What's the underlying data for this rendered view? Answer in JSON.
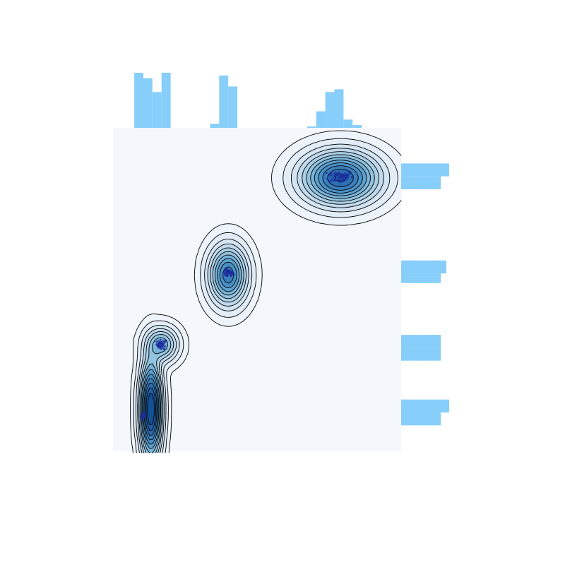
{
  "chart_data": {
    "type": "scatter",
    "variant": "jointplot-kde-contour-with-marginal-histograms",
    "title": "",
    "xlabel": "",
    "ylabel": "",
    "axes_visible": false,
    "grid": false,
    "colors": {
      "kde_background": "#f4f8fd",
      "kde_levels": [
        "#eef4fb",
        "#e2edf8",
        "#d3e4f3",
        "#c2d9ee",
        "#acd0e6",
        "#93c3df",
        "#79b3d8",
        "#5ea1cf",
        "#4a91c6",
        "#3a80be",
        "#2c6fb3",
        "#2060a5",
        "#155094"
      ],
      "contour_line": "#000000",
      "points": "#1d2c9e",
      "marginal_bars": "#87cefa"
    },
    "clusters": [
      {
        "center": [
          1.0,
          1.1
        ],
        "sd": [
          0.04,
          0.06
        ],
        "n": 20
      },
      {
        "center": [
          1.6,
          3.3
        ],
        "sd": [
          0.08,
          0.07
        ],
        "n": 40
      },
      {
        "center": [
          3.8,
          5.5
        ],
        "sd": [
          0.09,
          0.06
        ],
        "n": 45
      },
      {
        "center": [
          7.5,
          8.5
        ],
        "sd": [
          0.2,
          0.1
        ],
        "n": 60
      }
    ],
    "kde_centers": [
      {
        "center": [
          1.25,
          1.3
        ],
        "sd": [
          0.2,
          0.85
        ],
        "weight": 1.0
      },
      {
        "center": [
          1.6,
          3.3
        ],
        "sd": [
          0.3,
          0.3
        ],
        "weight": 0.35
      },
      {
        "center": [
          3.8,
          5.45
        ],
        "sd": [
          0.35,
          0.5
        ],
        "weight": 0.6
      },
      {
        "center": [
          7.5,
          8.45
        ],
        "sd": [
          0.7,
          0.45
        ],
        "weight": 0.75
      }
    ],
    "marginal_x": {
      "bins": [
        [
          0.7,
          1.0
        ],
        [
          1.0,
          1.3
        ],
        [
          1.3,
          1.6
        ],
        [
          1.6,
          1.9
        ],
        [
          3.2,
          3.5
        ],
        [
          3.5,
          3.8
        ],
        [
          3.8,
          4.1
        ],
        [
          6.4,
          6.7
        ],
        [
          6.7,
          7.0
        ],
        [
          7.0,
          7.3
        ],
        [
          7.3,
          7.6
        ],
        [
          7.6,
          7.9
        ],
        [
          7.9,
          8.2
        ]
      ],
      "counts": [
        20,
        18,
        13,
        20,
        1.5,
        19,
        15,
        0.5,
        6,
        13,
        14,
        3,
        1
      ]
    },
    "marginal_y": {
      "bins": [
        [
          0.8,
          1.2
        ],
        [
          1.2,
          1.6
        ],
        [
          2.8,
          3.2
        ],
        [
          3.2,
          3.6
        ],
        [
          5.2,
          5.5
        ],
        [
          5.5,
          5.9
        ],
        [
          8.1,
          8.5
        ],
        [
          8.5,
          8.9
        ]
      ],
      "counts": [
        14,
        17,
        14,
        14,
        14,
        16,
        14,
        17
      ]
    }
  }
}
